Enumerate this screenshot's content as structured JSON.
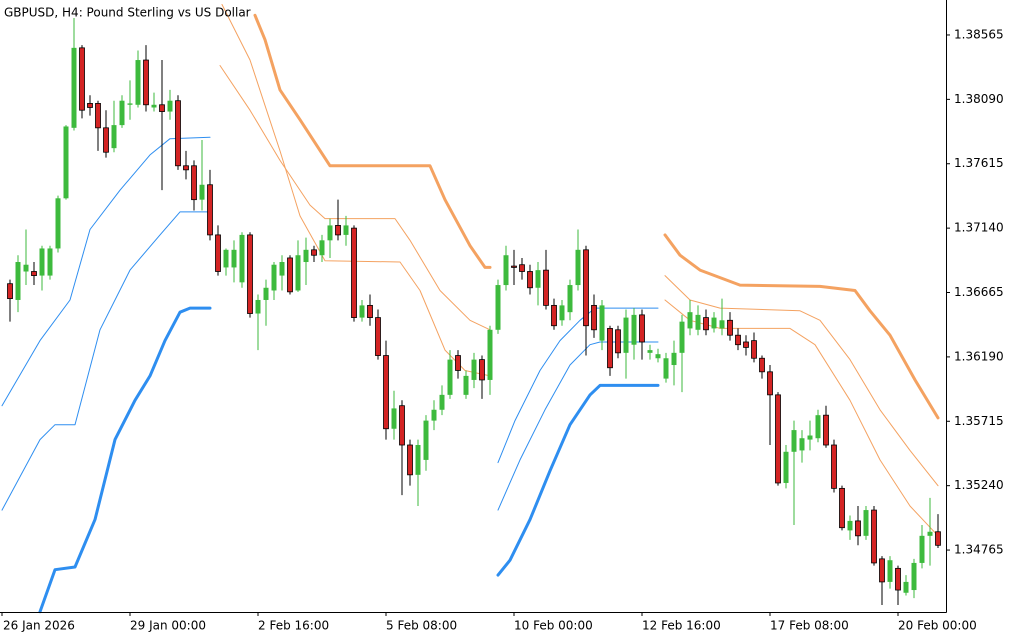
{
  "chart_data": {
    "type": "candlestick",
    "title": "GBPUSD, H4:  Pound Sterling vs US Dollar",
    "up_color": "#3dba3d",
    "down_color": "#d42424",
    "x": [
      1,
      2,
      3,
      4,
      5,
      6,
      7,
      8,
      9,
      10,
      11,
      12,
      13,
      14,
      15,
      16,
      17,
      18,
      19,
      20,
      21,
      22,
      23,
      24,
      25,
      26,
      27,
      28,
      29,
      30,
      31,
      32,
      33,
      34,
      35,
      36,
      37,
      38,
      39,
      40,
      41,
      42,
      43,
      44,
      45,
      46,
      47,
      48,
      49,
      50,
      51,
      52,
      53,
      54,
      55,
      56,
      57,
      58,
      59,
      60,
      61,
      62,
      63,
      64,
      65,
      66,
      67,
      68,
      69,
      70,
      71,
      72,
      73,
      74,
      75,
      76,
      77,
      78,
      79,
      80,
      81,
      82,
      83,
      84,
      85,
      86,
      87,
      88,
      89,
      90,
      91,
      92,
      93,
      94,
      95,
      96,
      97,
      98,
      99,
      100,
      101,
      102,
      103,
      104,
      105,
      106,
      107,
      108,
      109,
      110,
      111,
      112,
      113,
      114,
      115,
      116,
      117
    ],
    "open": [
      1.3673,
      1.3661,
      1.3682,
      1.3682,
      1.3679,
      1.3679,
      1.3699,
      1.3736,
      1.3788,
      1.3847,
      1.3806,
      1.3806,
      1.3788,
      1.3773,
      1.379,
      1.3805,
      1.3805,
      1.3838,
      1.3803,
      1.3805,
      1.38,
      1.3808,
      1.376,
      1.376,
      1.3735,
      1.3746,
      1.3709,
      1.3685,
      1.3685,
      1.3674,
      1.3709,
      1.3651,
      1.3661,
      1.3668,
      1.3679,
      1.3692,
      1.3668,
      1.3689,
      1.3698,
      1.3694,
      1.3705,
      1.3716,
      1.3709,
      1.3714,
      1.3648,
      1.3657,
      1.3648,
      1.362,
      1.3566,
      1.3583,
      1.3554,
      1.3532,
      1.3543,
      1.3572,
      1.358,
      1.3591,
      1.362,
      1.3591,
      1.3602,
      1.3617,
      1.3602,
      1.3639,
      1.3672,
      1.3686,
      1.3687,
      1.3682,
      1.367,
      1.3683,
      1.3657,
      1.3646,
      1.3652,
      1.3672,
      1.3698,
      1.3657,
      1.3631,
      1.364,
      1.3639,
      1.3622,
      1.3628,
      1.365,
      1.3622,
      1.3618,
      1.3603,
      1.3613,
      1.3622,
      1.364,
      1.3639,
      1.3648,
      1.364,
      1.364,
      1.3646,
      1.3635,
      1.363,
      1.3631,
      1.3618,
      1.3608,
      1.3591,
      1.3526,
      1.3549,
      1.355,
      1.3558,
      1.3559,
      1.3576,
      1.3554,
      1.3522,
      1.3491,
      1.3498,
      1.3487,
      1.3506,
      1.347,
      1.3453,
      1.3463,
      1.3445,
      1.3447,
      1.3467,
      1.3487,
      1.349
    ],
    "high": [
      1.3676,
      1.3694,
      1.3713,
      1.3689,
      1.3701,
      1.3701,
      1.3738,
      1.379,
      1.3869,
      1.3849,
      1.3812,
      1.3808,
      1.3801,
      1.3808,
      1.3812,
      1.3823,
      1.3845,
      1.3849,
      1.3814,
      1.3838,
      1.3816,
      1.3812,
      1.3771,
      1.3764,
      1.3779,
      1.3757,
      1.3716,
      1.3699,
      1.3705,
      1.3711,
      1.3711,
      1.3665,
      1.3676,
      1.3689,
      1.3694,
      1.3694,
      1.3705,
      1.3707,
      1.3701,
      1.3709,
      1.3721,
      1.3735,
      1.3723,
      1.3716,
      1.3661,
      1.3665,
      1.3654,
      1.3631,
      1.3594,
      1.3587,
      1.3558,
      1.3558,
      1.3576,
      1.3587,
      1.3598,
      1.3624,
      1.3624,
      1.3609,
      1.3622,
      1.362,
      1.3642,
      1.3676,
      1.3701,
      1.3698,
      1.3692,
      1.3687,
      1.3689,
      1.3698,
      1.3662,
      1.3661,
      1.3676,
      1.3713,
      1.3701,
      1.3665,
      1.3661,
      1.3642,
      1.3642,
      1.3654,
      1.3655,
      1.3654,
      1.3628,
      1.3625,
      1.3622,
      1.3631,
      1.365,
      1.3661,
      1.3657,
      1.3654,
      1.3652,
      1.3662,
      1.3652,
      1.364,
      1.3635,
      1.3637,
      1.362,
      1.3613,
      1.3593,
      1.3554,
      1.3572,
      1.3565,
      1.3572,
      1.358,
      1.3583,
      1.3558,
      1.3524,
      1.3502,
      1.3509,
      1.3509,
      1.3509,
      1.3472,
      1.3472,
      1.3465,
      1.3458,
      1.347,
      1.3495,
      1.3515,
      1.3503
    ],
    "low": [
      1.3645,
      1.3652,
      1.3672,
      1.3672,
      1.3668,
      1.3676,
      1.3696,
      1.3735,
      1.3786,
      1.3795,
      1.3797,
      1.3771,
      1.3766,
      1.377,
      1.3788,
      1.3794,
      1.3803,
      1.38,
      1.38,
      1.3742,
      1.3794,
      1.3757,
      1.375,
      1.3727,
      1.3727,
      1.3705,
      1.3679,
      1.3679,
      1.3674,
      1.367,
      1.3648,
      1.3624,
      1.3642,
      1.3661,
      1.3668,
      1.3665,
      1.3667,
      1.3672,
      1.3689,
      1.3689,
      1.3692,
      1.3705,
      1.3701,
      1.3645,
      1.3645,
      1.3642,
      1.3617,
      1.3558,
      1.3558,
      1.3517,
      1.3524,
      1.3509,
      1.3535,
      1.3565,
      1.3576,
      1.3588,
      1.3603,
      1.3588,
      1.3596,
      1.3588,
      1.3591,
      1.3636,
      1.3668,
      1.3672,
      1.3676,
      1.3665,
      1.3657,
      1.3654,
      1.3639,
      1.3642,
      1.3646,
      1.3668,
      1.362,
      1.3633,
      1.3624,
      1.3605,
      1.3618,
      1.3603,
      1.3617,
      1.3617,
      1.3617,
      1.3615,
      1.36,
      1.3598,
      1.3593,
      1.3635,
      1.3635,
      1.3635,
      1.3637,
      1.3635,
      1.3631,
      1.3624,
      1.362,
      1.3615,
      1.3603,
      1.3554,
      1.3524,
      1.3522,
      1.3495,
      1.3541,
      1.355,
      1.3556,
      1.3552,
      1.3519,
      1.3491,
      1.3484,
      1.348,
      1.3484,
      1.3465,
      1.3436,
      1.3448,
      1.3436,
      1.3443,
      1.3441,
      1.3463,
      1.3465,
      1.3478
    ],
    "close": [
      1.3662,
      1.3689,
      1.3687,
      1.3679,
      1.3699,
      1.3699,
      1.3736,
      1.3789,
      1.3847,
      1.3801,
      1.3803,
      1.3788,
      1.377,
      1.379,
      1.3808,
      1.3806,
      1.3838,
      1.3805,
      1.3805,
      1.38,
      1.3808,
      1.376,
      1.3757,
      1.3735,
      1.3746,
      1.3709,
      1.3682,
      1.3698,
      1.3698,
      1.3709,
      1.3651,
      1.3661,
      1.367,
      1.3687,
      1.3689,
      1.3667,
      1.3694,
      1.3698,
      1.3694,
      1.3705,
      1.3716,
      1.3709,
      1.3716,
      1.3648,
      1.3657,
      1.3648,
      1.362,
      1.3566,
      1.3581,
      1.3554,
      1.3532,
      1.3554,
      1.3572,
      1.358,
      1.3591,
      1.3617,
      1.3609,
      1.3605,
      1.3617,
      1.3602,
      1.3639,
      1.3672,
      1.3694,
      1.3685,
      1.3682,
      1.367,
      1.3683,
      1.3657,
      1.3642,
      1.3657,
      1.3672,
      1.3698,
      1.3642,
      1.3639,
      1.3657,
      1.3611,
      1.3622,
      1.3648,
      1.365,
      1.363,
      1.3624,
      1.3621,
      1.3618,
      1.3622,
      1.3645,
      1.3652,
      1.365,
      1.3639,
      1.3648,
      1.3646,
      1.3635,
      1.3628,
      1.3626,
      1.3618,
      1.3608,
      1.3591,
      1.3526,
      1.3549,
      1.3565,
      1.3559,
      1.3561,
      1.3576,
      1.3554,
      1.3522,
      1.3493,
      1.3498,
      1.3487,
      1.3506,
      1.3467,
      1.3453,
      1.3469,
      1.3447,
      1.3453,
      1.3467,
      1.3487,
      1.349,
      1.348
    ],
    "lines": [
      {
        "color": "#2e8ef0",
        "width": 3,
        "x": [
          4.75,
          6.625,
          9.125,
          11.625,
          14.125,
          16.625,
          18.5,
          20.375,
          22.25,
          23.5,
          26
        ],
        "values": [
          1.3431,
          1.3462,
          1.3464,
          1.3499,
          1.3558,
          1.3587,
          1.3605,
          1.3631,
          1.3652,
          1.3655,
          1.3655
        ]
      },
      {
        "color": "#2e8ef0",
        "width": 1,
        "x": [
          0,
          4.75,
          6.625,
          9.125,
          12.25,
          16,
          19.75,
          22.25,
          26
        ],
        "values": [
          1.3506,
          1.3558,
          1.3569,
          1.3569,
          1.3639,
          1.3683,
          1.3709,
          1.3726,
          1.3726
        ]
      },
      {
        "color": "#2e8ef0",
        "width": 1,
        "x": [
          0,
          4.75,
          8.5,
          11,
          14.75,
          18.5,
          21,
          26
        ],
        "values": [
          1.3583,
          1.3631,
          1.3661,
          1.3713,
          1.3742,
          1.3768,
          1.378,
          1.3781
        ]
      },
      {
        "color": "#2e8ef0",
        "width": 3,
        "x": [
          62,
          63.5,
          66,
          68.5,
          71,
          73.5,
          74.75,
          82
        ],
        "values": [
          1.3458,
          1.3469,
          1.3499,
          1.3535,
          1.3569,
          1.3591,
          1.3598,
          1.3598
        ]
      },
      {
        "color": "#2e8ef0",
        "width": 1,
        "x": [
          62,
          64.75,
          67.875,
          71,
          73.5,
          74.75,
          82
        ],
        "values": [
          1.3506,
          1.3543,
          1.358,
          1.3613,
          1.3628,
          1.363,
          1.363
        ]
      },
      {
        "color": "#2e8ef0",
        "width": 1,
        "x": [
          62,
          64.125,
          67.25,
          69.75,
          72.25,
          74.125,
          82
        ],
        "values": [
          1.3541,
          1.3572,
          1.3609,
          1.3631,
          1.3646,
          1.3655,
          1.3655
        ]
      },
      {
        "color": "#f4a261",
        "width": 3,
        "x": [
          31.625,
          32.875,
          34.75,
          37.25,
          41,
          53.5,
          55.375,
          58.5,
          60.375,
          61
        ],
        "values": [
          1.3871,
          1.3853,
          1.3816,
          1.3794,
          1.376,
          1.376,
          1.3735,
          1.3701,
          1.3685,
          1.3685
        ]
      },
      {
        "color": "#f4a261",
        "width": 1,
        "x": [
          27.25,
          31,
          34.75,
          38.5,
          40.375,
          49.125,
          51,
          54.75,
          58.5,
          61
        ],
        "values": [
          1.3834,
          1.3801,
          1.3764,
          1.3731,
          1.3721,
          1.3721,
          1.3705,
          1.3668,
          1.3646,
          1.3639
        ]
      },
      {
        "color": "#f4a261",
        "width": 1,
        "x": [
          27.5,
          31,
          34.75,
          37.25,
          40.375,
          49.75,
          52.25,
          55.375,
          57.875,
          61
        ],
        "values": [
          1.3879,
          1.3838,
          1.3771,
          1.3723,
          1.369,
          1.3689,
          1.3668,
          1.3624,
          1.3609,
          1.3605
        ]
      },
      {
        "color": "#f4a261",
        "width": 3,
        "x": [
          82.875,
          84.75,
          87.25,
          92.25,
          102.25,
          106.625,
          108.5,
          111,
          114.125,
          117
        ],
        "values": [
          1.3709,
          1.3694,
          1.3683,
          1.3672,
          1.3671,
          1.3668,
          1.3653,
          1.3635,
          1.3602,
          1.3574
        ]
      },
      {
        "color": "#f4a261",
        "width": 1,
        "x": [
          82.875,
          86,
          89.75,
          99.75,
          102.25,
          106,
          109.75,
          113.5,
          117
        ],
        "values": [
          1.3679,
          1.3661,
          1.3655,
          1.3653,
          1.3646,
          1.3617,
          1.358,
          1.355,
          1.3524
        ]
      },
      {
        "color": "#f4a261",
        "width": 1,
        "x": [
          82.875,
          86,
          89.75,
          98.5,
          101.625,
          106,
          109.75,
          113.5,
          117
        ],
        "values": [
          1.3661,
          1.3646,
          1.364,
          1.364,
          1.3628,
          1.3587,
          1.3543,
          1.3509,
          1.3487
        ]
      }
    ],
    "xlim": [
      0,
      118
    ],
    "xticks": [
      {
        "value": 0,
        "label": "26 Jan 2026"
      },
      {
        "value": 16,
        "label": "29 Jan 00:00"
      },
      {
        "value": 32,
        "label": "2 Feb 16:00"
      },
      {
        "value": 48,
        "label": "5 Feb 08:00"
      },
      {
        "value": 64,
        "label": "10 Feb 00:00"
      },
      {
        "value": 80,
        "label": "12 Feb 16:00"
      },
      {
        "value": 96,
        "label": "17 Feb 08:00"
      },
      {
        "value": 112,
        "label": "20 Feb 00:00"
      }
    ],
    "ylim": [
      1.34308,
      1.38823
    ],
    "yticks": [
      {
        "value": 1.34765,
        "label": "1.34765"
      },
      {
        "value": 1.3524,
        "label": "1.35240"
      },
      {
        "value": 1.35715,
        "label": "1.35715"
      },
      {
        "value": 1.3619,
        "label": "1.36190"
      },
      {
        "value": 1.36665,
        "label": "1.36665"
      },
      {
        "value": 1.3714,
        "label": "1.37140"
      },
      {
        "value": 1.37615,
        "label": "1.37615"
      },
      {
        "value": 1.3809,
        "label": "1.38090"
      },
      {
        "value": 1.38565,
        "label": "1.38565"
      }
    ]
  }
}
